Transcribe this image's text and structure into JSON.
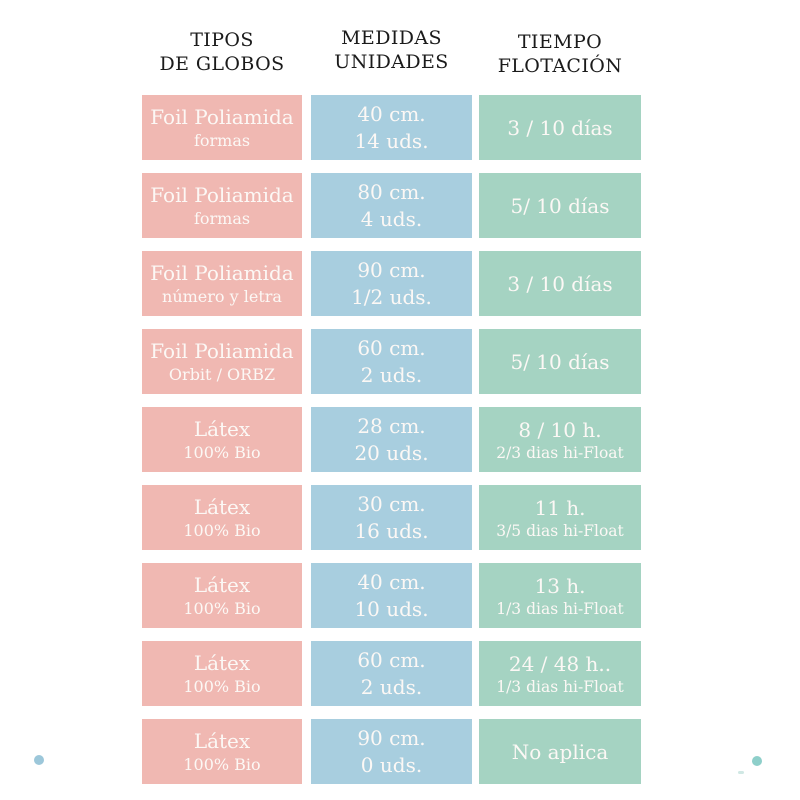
{
  "header": {
    "columns": [
      {
        "line1": "TIPOS",
        "line2": "DE GLOBOS"
      },
      {
        "line1": "MEDIDAS",
        "line2": "UNIDADES"
      },
      {
        "line1": "TIEMPO",
        "line2": "FLOTACIÓN"
      }
    ]
  },
  "rows": [
    {
      "tipo": {
        "l1": "Foil Poliamida",
        "l2": "formas"
      },
      "medidas": {
        "l1": "40 cm.",
        "l2": "14 uds."
      },
      "tiempo": {
        "l1": "3 / 10 días",
        "l2": ""
      }
    },
    {
      "tipo": {
        "l1": "Foil Poliamida",
        "l2": "formas"
      },
      "medidas": {
        "l1": "80 cm.",
        "l2": "4 uds."
      },
      "tiempo": {
        "l1": "5/ 10 días",
        "l2": ""
      }
    },
    {
      "tipo": {
        "l1": "Foil Poliamida",
        "l2": "número y letra"
      },
      "medidas": {
        "l1": "90 cm.",
        "l2": "1/2 uds."
      },
      "tiempo": {
        "l1": "3 / 10 días",
        "l2": ""
      }
    },
    {
      "tipo": {
        "l1": "Foil Poliamida",
        "l2": "Orbit / ORBZ"
      },
      "medidas": {
        "l1": "60 cm.",
        "l2": "2 uds."
      },
      "tiempo": {
        "l1": "5/ 10 días",
        "l2": ""
      }
    },
    {
      "tipo": {
        "l1": "Látex",
        "l2": "100% Bio"
      },
      "medidas": {
        "l1": "28 cm.",
        "l2": "20 uds."
      },
      "tiempo": {
        "l1": "8 / 10 h.",
        "l2": "2/3 dias hi-Float"
      }
    },
    {
      "tipo": {
        "l1": "Látex",
        "l2": "100% Bio"
      },
      "medidas": {
        "l1": "30 cm.",
        "l2": "16 uds."
      },
      "tiempo": {
        "l1": "11 h.",
        "l2": "3/5 dias hi-Float"
      }
    },
    {
      "tipo": {
        "l1": "Látex",
        "l2": "100% Bio"
      },
      "medidas": {
        "l1": "40 cm.",
        "l2": "10 uds."
      },
      "tiempo": {
        "l1": "13 h.",
        "l2": "1/3 dias hi-Float"
      }
    },
    {
      "tipo": {
        "l1": "Látex",
        "l2": "100% Bio"
      },
      "medidas": {
        "l1": "60 cm.",
        "l2": "2 uds."
      },
      "tiempo": {
        "l1": "24 / 48 h..",
        "l2": "1/3 dias hi-Float"
      }
    },
    {
      "tipo": {
        "l1": "Látex",
        "l2": "100% Bio"
      },
      "medidas": {
        "l1": "90 cm.",
        "l2": "0 uds."
      },
      "tiempo": {
        "l1": "No aplica",
        "l2": ""
      }
    }
  ],
  "colors": {
    "pink": "#f0b8b2",
    "blue": "#a8cedf",
    "green": "#a5d3c2",
    "box_text": "#fcf8f5",
    "header_text": "#1b1b1b",
    "dot_left": "#9cc7da",
    "dot_right": "#8ecfca",
    "dash": "#bcded9"
  },
  "chart_data": {
    "type": "table",
    "columns": [
      "TIPOS DE GLOBOS",
      "MEDIDAS UNIDADES",
      "TIEMPO FLOTACIÓN"
    ],
    "rows": [
      [
        "Foil Poliamida formas",
        "40 cm. 14 uds.",
        "3 / 10 días"
      ],
      [
        "Foil Poliamida formas",
        "80 cm. 4 uds.",
        "5/ 10 días"
      ],
      [
        "Foil Poliamida número y letra",
        "90 cm. 1/2 uds.",
        "3 / 10 días"
      ],
      [
        "Foil Poliamida Orbit / ORBZ",
        "60 cm. 2 uds.",
        "5/ 10 días"
      ],
      [
        "Látex 100% Bio",
        "28 cm. 20 uds.",
        "8 / 10 h. 2/3 dias hi-Float"
      ],
      [
        "Látex 100% Bio",
        "30 cm. 16 uds.",
        "11 h. 3/5 dias hi-Float"
      ],
      [
        "Látex 100% Bio",
        "40 cm. 10 uds.",
        "13 h. 1/3 dias hi-Float"
      ],
      [
        "Látex 100% Bio",
        "60 cm. 2 uds.",
        "24 / 48 h.. 1/3 dias hi-Float"
      ],
      [
        "Látex 100% Bio",
        "90 cm. 0 uds.",
        "No aplica"
      ]
    ],
    "legend_position": "none",
    "grid": false
  }
}
